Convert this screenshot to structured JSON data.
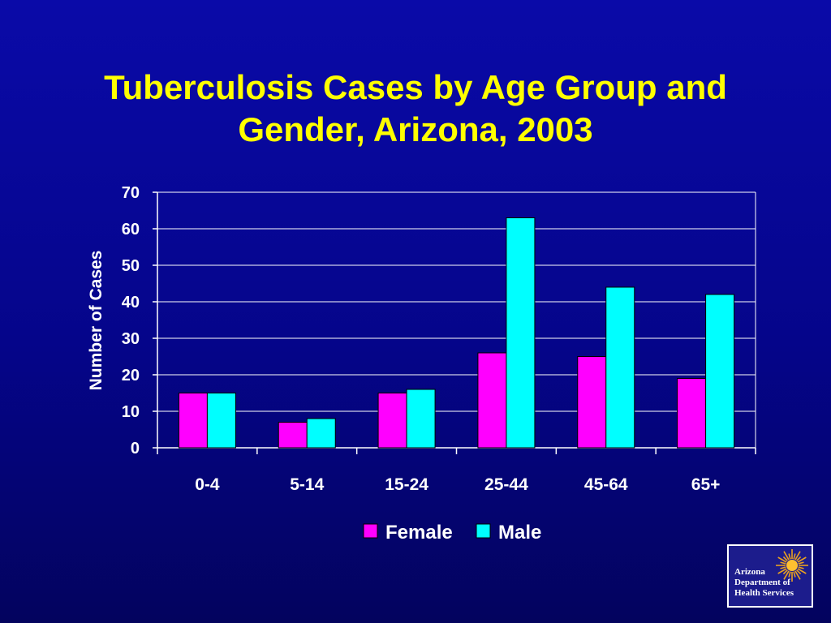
{
  "title_lines": [
    "Tuberculosis Cases by Age Group and",
    "Gender, Arizona, 2003"
  ],
  "colors": {
    "background": "#0808a0",
    "title": "#ffff00",
    "female": "#ff00ff",
    "male": "#00ffff",
    "axis_text": "#ffffff",
    "grid": "#ffffff"
  },
  "chart_data": {
    "type": "bar",
    "title": "Tuberculosis Cases by Age Group and Gender, Arizona, 2003",
    "xlabel": "",
    "ylabel": "Number of Cases",
    "categories": [
      "0-4",
      "5-14",
      "15-24",
      "25-44",
      "45-64",
      "65+"
    ],
    "series": [
      {
        "name": "Female",
        "values": [
          15,
          7,
          15,
          26,
          25,
          19
        ]
      },
      {
        "name": "Male",
        "values": [
          15,
          8,
          16,
          63,
          44,
          42
        ]
      }
    ],
    "ylim": [
      0,
      70
    ],
    "yticks": [
      0,
      10,
      20,
      30,
      40,
      50,
      60,
      70
    ],
    "grid": true,
    "legend": "bottom"
  },
  "logo": {
    "lines": [
      "Arizona",
      "Department of",
      "Health Services"
    ],
    "icon": "sun-icon"
  }
}
